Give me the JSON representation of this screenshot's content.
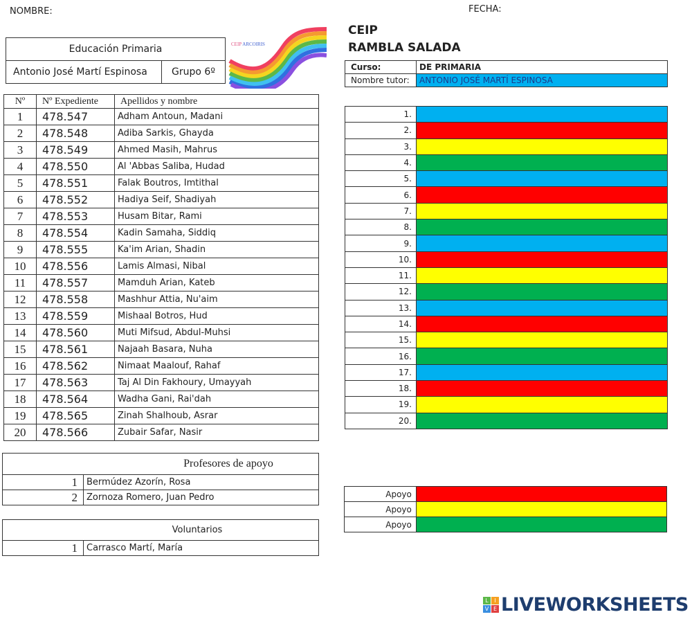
{
  "header": {
    "nombre_label": "NOMBRE:",
    "fecha_label": "FECHA:"
  },
  "info": {
    "etapa": "Educación Primaria",
    "tutor": "Antonio José Martí Espinosa",
    "grupo": "Grupo 6º"
  },
  "logo": {
    "text": "CEIP ARCOIRIS"
  },
  "school": {
    "line1": "CEIP",
    "line2": "RAMBLA SALADA"
  },
  "curso": {
    "label": "Curso:",
    "value": "DE PRIMARIA",
    "tutor_label": "Nombre tutor:",
    "tutor_value": "ANTONIO JOSÉ MARTÍ ESPINOSA"
  },
  "students": {
    "headers": [
      "Nº",
      "Nº Expediente",
      "Apellidos y nombre"
    ],
    "rows": [
      {
        "n": "1",
        "exp": "478.547",
        "name": "Adham Antoun, Madani"
      },
      {
        "n": "2",
        "exp": "478.548",
        "name": "Adiba Sarkis, Ghayda"
      },
      {
        "n": "3",
        "exp": "478.549",
        "name": "Ahmed Masih, Mahrus"
      },
      {
        "n": "4",
        "exp": "478.550",
        "name": "Al 'Abbas Saliba, Hudad"
      },
      {
        "n": "5",
        "exp": "478.551",
        "name": "Falak Boutros, Imtithal"
      },
      {
        "n": "6",
        "exp": "478.552",
        "name": "Hadiya Seif, Shadiyah"
      },
      {
        "n": "7",
        "exp": "478.553",
        "name": "Husam Bitar, Rami"
      },
      {
        "n": "8",
        "exp": "478.554",
        "name": "Kadin Samaha, Siddiq"
      },
      {
        "n": "9",
        "exp": "478.555",
        "name": "Ka'im Arian, Shadin"
      },
      {
        "n": "10",
        "exp": "478.556",
        "name": "Lamis Almasi, Nibal"
      },
      {
        "n": "11",
        "exp": "478.557",
        "name": "Mamduh Arian, Kateb"
      },
      {
        "n": "12",
        "exp": "478.558",
        "name": "Mashhur Attia, Nu'aim"
      },
      {
        "n": "13",
        "exp": "478.559",
        "name": "Mishaal Botros, Hud"
      },
      {
        "n": "14",
        "exp": "478.560",
        "name": "Muti Mifsud, Abdul-Muhsi"
      },
      {
        "n": "15",
        "exp": "478.561",
        "name": "Najaah Basara, Nuha"
      },
      {
        "n": "16",
        "exp": "478.562",
        "name": "Nimaat Maalouf, Rahaf"
      },
      {
        "n": "17",
        "exp": "478.563",
        "name": "Taj Al Din Fakhoury, Umayyah"
      },
      {
        "n": "18",
        "exp": "478.564",
        "name": "Wadha Gani, Rai'dah"
      },
      {
        "n": "19",
        "exp": "478.565",
        "name": "Zinah Shalhoub, Asrar"
      },
      {
        "n": "20",
        "exp": "478.566",
        "name": "Zubair Safar, Nasir"
      }
    ]
  },
  "colors": {
    "blue": "#00b0f0",
    "red": "#ff0000",
    "yellow": "#ffff00",
    "green": "#00b050"
  },
  "slots": [
    "1.",
    "2.",
    "3.",
    "4.",
    "5.",
    "6.",
    "7.",
    "8.",
    "9.",
    "10.",
    "11.",
    "12.",
    "13.",
    "14.",
    "15.",
    "16.",
    "17.",
    "18.",
    "19.",
    "20."
  ],
  "slot_colors": [
    "blue",
    "red",
    "yellow",
    "green",
    "blue",
    "red",
    "yellow",
    "green",
    "blue",
    "red",
    "yellow",
    "green",
    "blue",
    "red",
    "yellow",
    "green",
    "blue",
    "red",
    "yellow",
    "green"
  ],
  "apoyo_profes": {
    "title": "Profesores de apoyo",
    "rows": [
      {
        "n": "1",
        "name": "Bermúdez Azorín, Rosa"
      },
      {
        "n": "2",
        "name": "Zornoza Romero, Juan Pedro"
      }
    ]
  },
  "voluntarios": {
    "title": "Voluntarios",
    "rows": [
      {
        "n": "1",
        "name": "Carrasco Martí, María"
      }
    ]
  },
  "apoyo_slots": {
    "labels": [
      "Apoyo",
      "Apoyo",
      "Apoyo"
    ],
    "colors": [
      "red",
      "yellow",
      "green"
    ]
  },
  "brand": {
    "text": "LIVEWORKSHEETS"
  }
}
